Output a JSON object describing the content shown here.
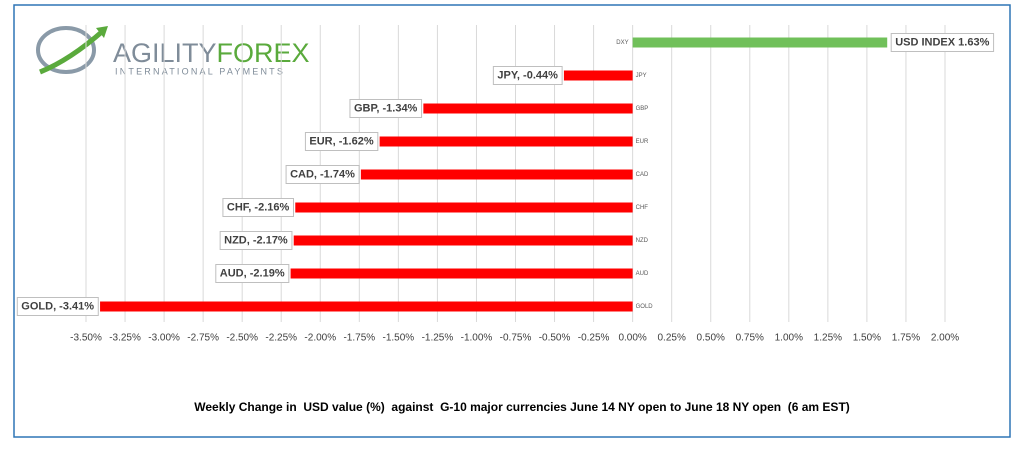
{
  "logo": {
    "brand_1": "AGILITY",
    "brand_2": "FOREX",
    "tagline": "INTERNATIONAL PAYMENTS"
  },
  "chart_data": {
    "type": "hbar",
    "title": "Weekly Change in  USD value (%)  against  G-10 major currencies June 14 NY open to June 18 NY open  (6 am EST)",
    "categories": [
      "DXY",
      "JPY",
      "GBP",
      "EUR",
      "CAD",
      "CHF",
      "NZD",
      "AUD",
      "GOLD"
    ],
    "values": [
      1.63,
      -0.44,
      -1.34,
      -1.62,
      -1.74,
      -2.16,
      -2.17,
      -2.19,
      -3.41
    ],
    "value_labels": [
      "USD INDEX 1.63%",
      "JPY, -0.44%",
      "GBP, -1.34%",
      "EUR, -1.62%",
      "CAD, -1.74%",
      "CHF, -2.16%",
      "NZD, -2.17%",
      "AUD, -2.19%",
      "GOLD, -3.41%"
    ],
    "colors": {
      "positive": "#70c05a",
      "negative": "#ff0000"
    },
    "xlim": [
      -3.5,
      2.0
    ],
    "xticks": [
      {
        "value": -3.5,
        "label": "-3.50%"
      },
      {
        "value": -3.25,
        "label": "-3.25%"
      },
      {
        "value": -3.0,
        "label": "-3.00%"
      },
      {
        "value": -2.75,
        "label": "-2.75%"
      },
      {
        "value": -2.5,
        "label": "-2.50%"
      },
      {
        "value": -2.25,
        "label": "-2.25%"
      },
      {
        "value": -2.0,
        "label": "-2.00%"
      },
      {
        "value": -1.75,
        "label": "-1.75%"
      },
      {
        "value": -1.5,
        "label": "-1.50%"
      },
      {
        "value": -1.25,
        "label": "-1.25%"
      },
      {
        "value": -1.0,
        "label": "-1.00%"
      },
      {
        "value": -0.75,
        "label": "-0.75%"
      },
      {
        "value": -0.5,
        "label": "-0.50%"
      },
      {
        "value": -0.25,
        "label": "-0.25%"
      },
      {
        "value": 0,
        "label": "0.00%"
      },
      {
        "value": 0.25,
        "label": "0.25%"
      },
      {
        "value": 0.5,
        "label": "0.50%"
      },
      {
        "value": 0.75,
        "label": "0.75%"
      },
      {
        "value": 1.0,
        "label": "1.00%"
      },
      {
        "value": 1.25,
        "label": "1.25%"
      },
      {
        "value": 1.5,
        "label": "1.50%"
      },
      {
        "value": 1.75,
        "label": "1.75%"
      },
      {
        "value": 2.0,
        "label": "2.00%"
      }
    ],
    "grid": true
  }
}
